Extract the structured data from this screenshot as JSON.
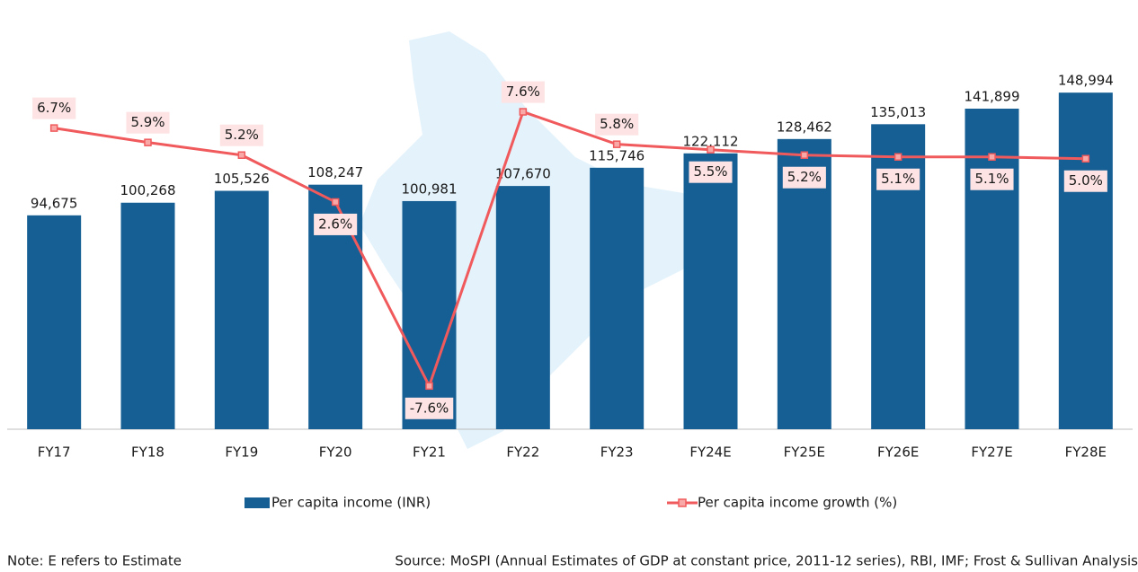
{
  "chart_data": {
    "type": "bar-line",
    "categories": [
      "FY17",
      "FY18",
      "FY19",
      "FY20",
      "FY21",
      "FY22",
      "FY23",
      "FY24E",
      "FY25E",
      "FY26E",
      "FY27E",
      "FY28E"
    ],
    "series": [
      {
        "name": "Per capita income (INR)",
        "type": "bar",
        "color": "#155f94",
        "values": [
          94675,
          100268,
          105526,
          108247,
          100981,
          107670,
          115746,
          122112,
          128462,
          135013,
          141899,
          148994
        ],
        "value_labels": [
          "94,675",
          "100,268",
          "105,526",
          "108,247",
          "100,981",
          "107,670",
          "115,746",
          "122,112",
          "128,462",
          "135,013",
          "141,899",
          "148,994"
        ]
      },
      {
        "name": "Per capita income growth (%)",
        "type": "line",
        "axis": "y2",
        "color": "#f05a5c",
        "values": [
          6.7,
          5.9,
          5.2,
          2.6,
          -7.6,
          7.6,
          5.8,
          5.5,
          5.2,
          5.1,
          5.1,
          5.0
        ],
        "value_labels": [
          "6.7%",
          "5.9%",
          "5.2%",
          "2.6%",
          "-7.6%",
          "7.6%",
          "5.8%",
          "5.5%",
          "5.2%",
          "5.1%",
          "5.1%",
          "5.0%"
        ]
      }
    ],
    "ylim": [
      0,
      190000
    ],
    "y2lim": [
      -10,
      13.8
    ],
    "note": "Note: E refers to Estimate",
    "source": "Source: MoSPI (Annual Estimates of GDP at constant price, 2011-12 series), RBI, IMF; Frost & Sullivan Analysis"
  }
}
